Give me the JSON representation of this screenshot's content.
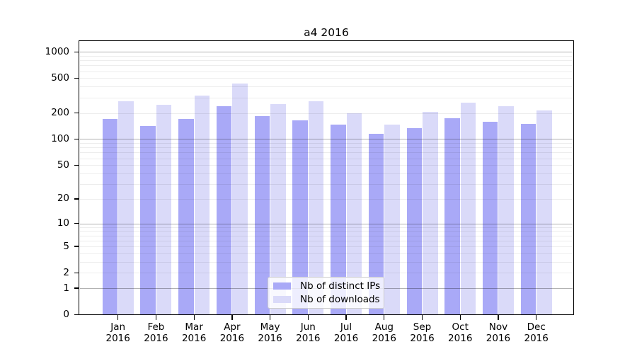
{
  "colors": {
    "distinct_ips": "#a9a9f7",
    "downloads": "#dadaf9",
    "grid_minor": "rgba(0,0,0,0.07)",
    "grid_major": "rgba(0,0,0,0.30)",
    "spine": "#000000",
    "background": "#ffffff",
    "legend_border": "#cccccc"
  },
  "chart_data": {
    "type": "bar",
    "title": "a4 2016",
    "scale": "log10(1+x)",
    "categories": [
      "Jan 2016",
      "Feb 2016",
      "Mar 2016",
      "Apr 2016",
      "May 2016",
      "Jun 2016",
      "Jul 2016",
      "Aug 2016",
      "Sep 2016",
      "Oct 2016",
      "Nov 2016",
      "Dec 2016"
    ],
    "series": [
      {
        "key": "distinct_ips",
        "name": "Nb of distinct IPs",
        "values": [
          171,
          141,
          171,
          240,
          185,
          165,
          148,
          114,
          134,
          174,
          158,
          150
        ]
      },
      {
        "key": "downloads",
        "name": "Nb of downloads",
        "values": [
          270,
          250,
          315,
          435,
          252,
          270,
          200,
          148,
          205,
          262,
          238,
          212
        ]
      }
    ],
    "y_ticks": [
      0,
      1,
      2,
      5,
      10,
      20,
      50,
      100,
      200,
      500,
      1000
    ],
    "grid_major_values": [
      1,
      10,
      100,
      1000
    ],
    "ylim": [
      0,
      1330
    ],
    "xlabel": "",
    "ylabel": "",
    "grid": true,
    "legend_position": "lower center"
  }
}
